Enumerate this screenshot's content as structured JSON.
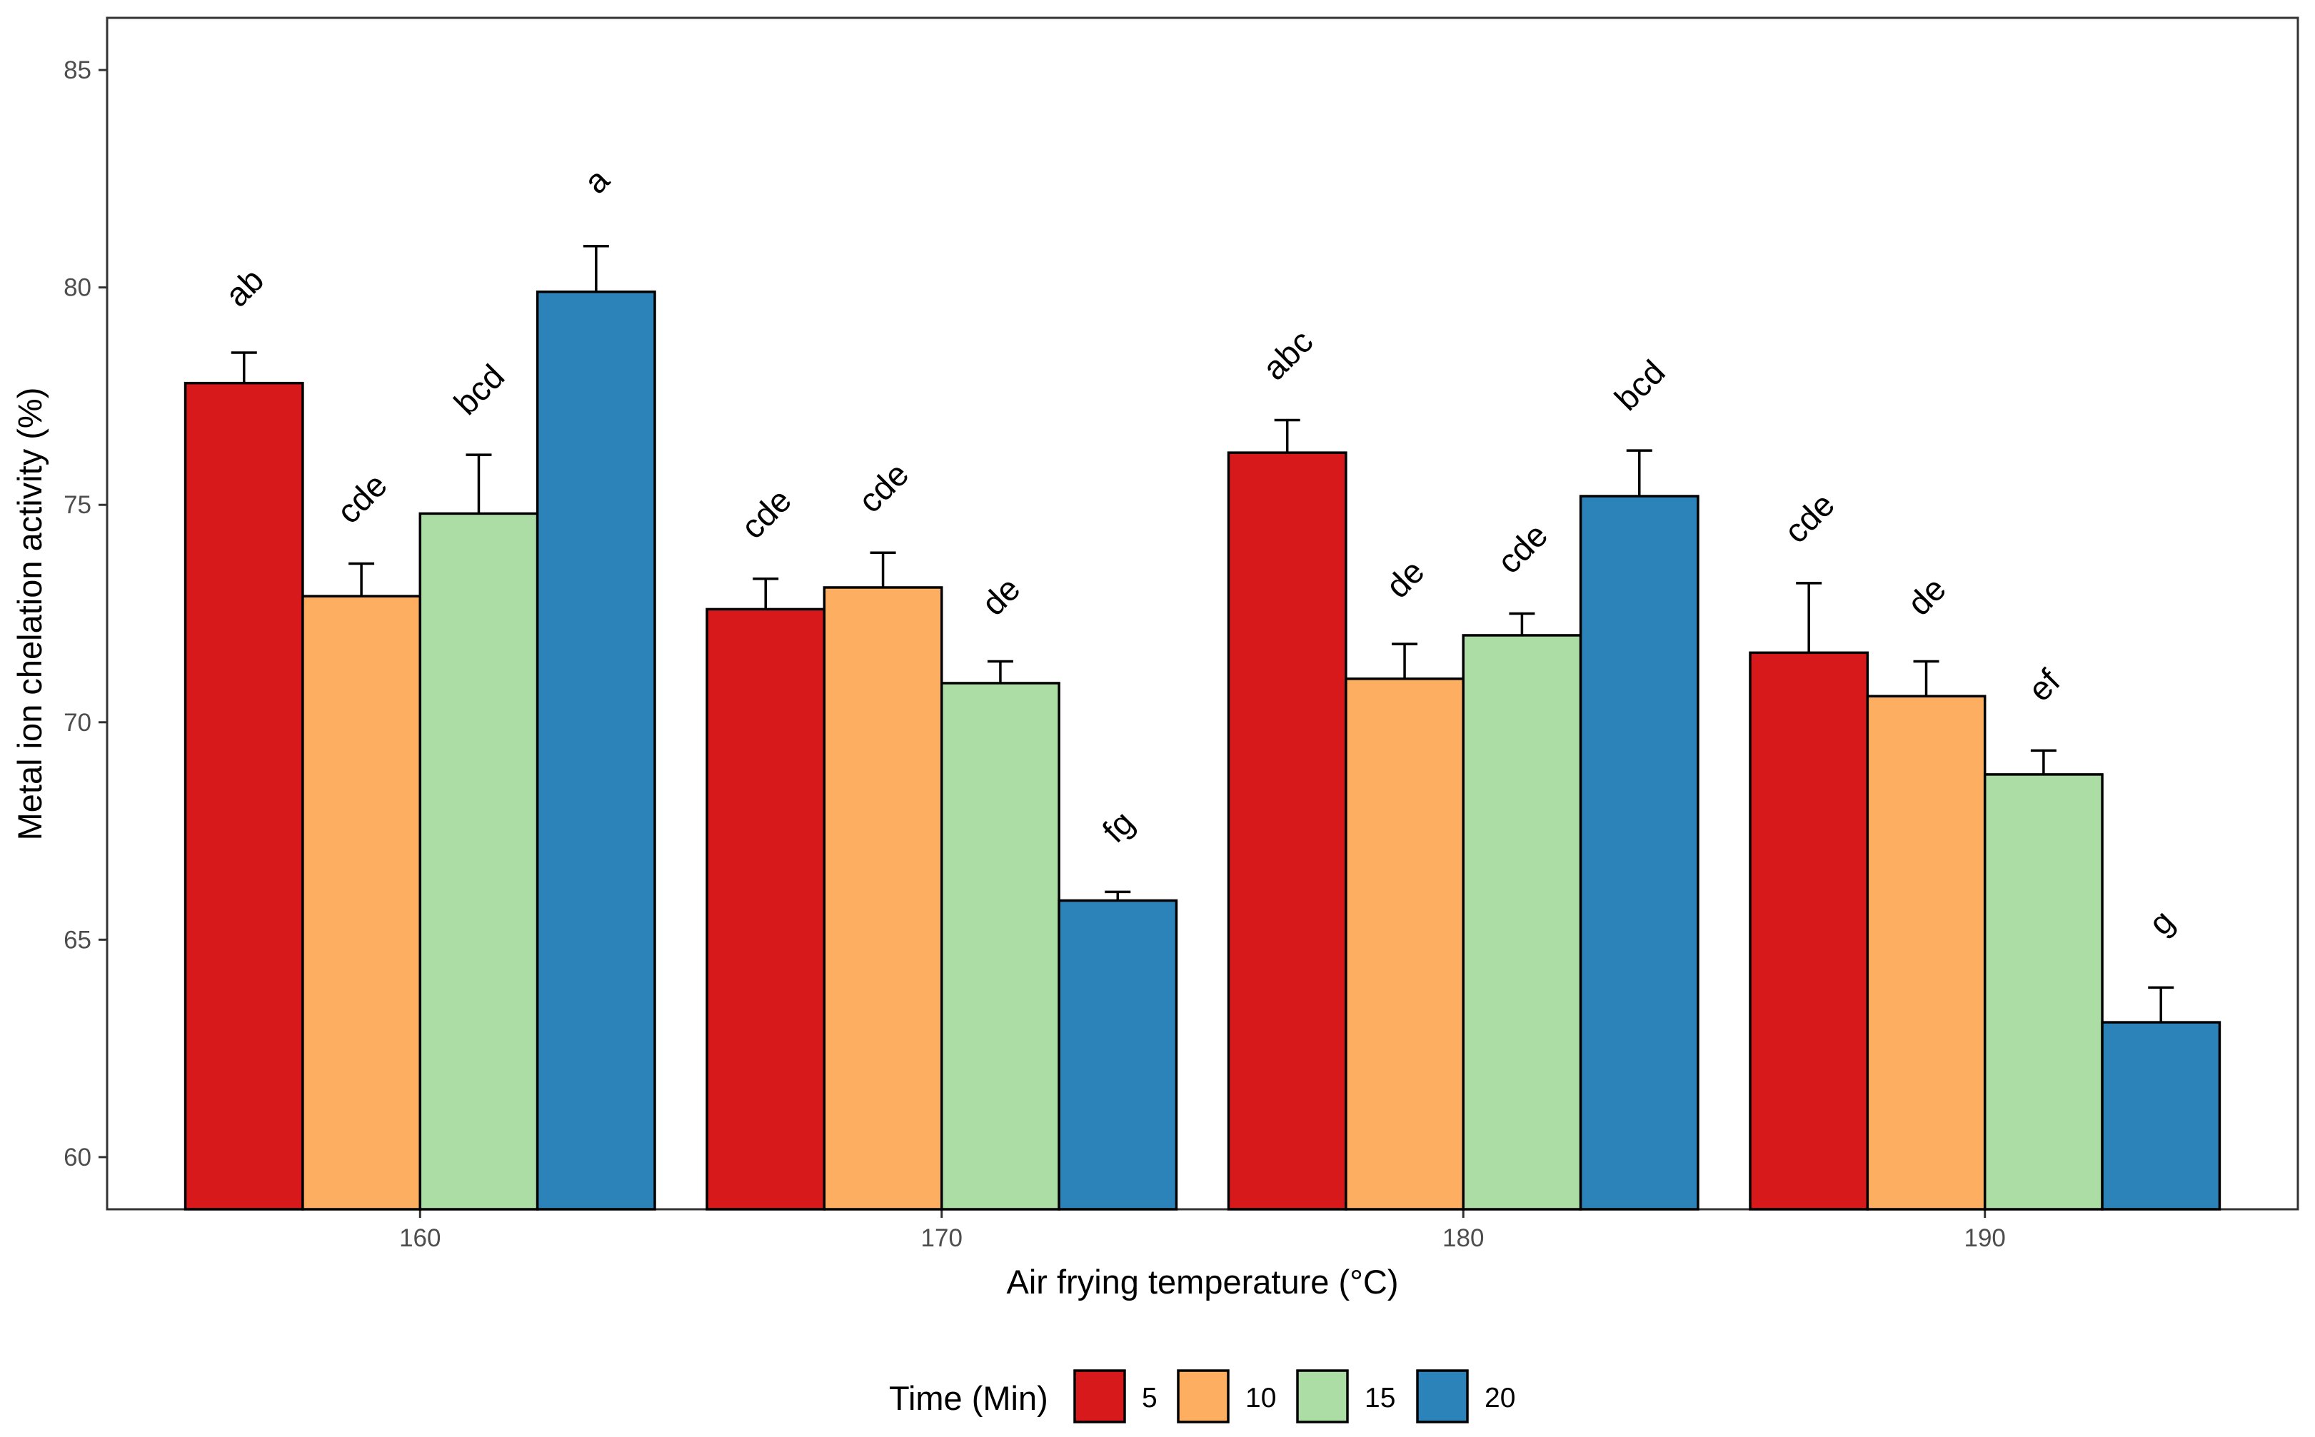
{
  "chart_data": {
    "type": "bar",
    "title": "",
    "xlabel": "Air frying temperature (°C)",
    "ylabel": "Metal ion chelation activity (%)",
    "ylim": [
      58.8,
      86.2
    ],
    "yticks": [
      60,
      65,
      70,
      75,
      80,
      85
    ],
    "categories": [
      "160",
      "170",
      "180",
      "190"
    ],
    "grid": false,
    "legend": {
      "title": "Time (Min)",
      "position": "bottom"
    },
    "series": [
      {
        "name": "5",
        "color": "#d7191c",
        "values": [
          77.8,
          72.6,
          76.2,
          71.6
        ],
        "errors": [
          0.7,
          0.7,
          0.75,
          1.6
        ],
        "letters": [
          "ab",
          "cde",
          "abc",
          "cde"
        ]
      },
      {
        "name": "10",
        "color": "#fdae61",
        "values": [
          72.9,
          73.1,
          71.0,
          70.6
        ],
        "errors": [
          0.75,
          0.8,
          0.8,
          0.8
        ],
        "letters": [
          "cde",
          "cde",
          "de",
          "de"
        ]
      },
      {
        "name": "15",
        "color": "#abdda4",
        "values": [
          74.8,
          70.9,
          72.0,
          68.8
        ],
        "errors": [
          1.35,
          0.5,
          0.5,
          0.55
        ],
        "letters": [
          "bcd",
          "de",
          "cde",
          "ef"
        ]
      },
      {
        "name": "20",
        "color": "#2b83ba",
        "values": [
          79.9,
          65.9,
          75.2,
          63.1
        ],
        "errors": [
          1.05,
          0.2,
          1.05,
          0.8
        ],
        "letters": [
          "a",
          "fg",
          "bcd",
          "g"
        ]
      }
    ]
  }
}
